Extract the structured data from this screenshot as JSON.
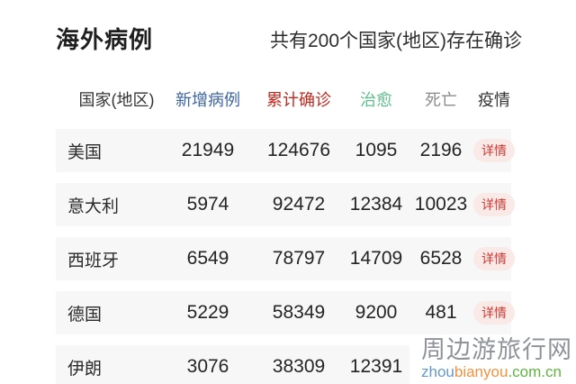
{
  "page": {
    "title": "海外病例",
    "subtitle": "共有200个国家(地区)存在确诊"
  },
  "table": {
    "headers": [
      {
        "label": "国家(地区)",
        "color": "#333333"
      },
      {
        "label": "新增病例",
        "color": "#3f64a2"
      },
      {
        "label": "累计确诊",
        "color": "#bf2a21"
      },
      {
        "label": "治愈",
        "color": "#5fbe8e"
      },
      {
        "label": "死亡",
        "color": "#8c8c8c"
      },
      {
        "label": "疫情",
        "color": "#333333"
      }
    ],
    "detail_label": "详情",
    "rows": [
      {
        "country": "美国",
        "new_cases": "21949",
        "confirmed": "124676",
        "cured": "1095",
        "deaths": "2196"
      },
      {
        "country": "意大利",
        "new_cases": "5974",
        "confirmed": "92472",
        "cured": "12384",
        "deaths": "10023"
      },
      {
        "country": "西班牙",
        "new_cases": "6549",
        "confirmed": "78797",
        "cured": "14709",
        "deaths": "6528"
      },
      {
        "country": "德国",
        "new_cases": "5229",
        "confirmed": "58349",
        "cured": "9200",
        "deaths": "481"
      },
      {
        "country": "伊朗",
        "new_cases": "3076",
        "confirmed": "38309",
        "cured": "12391",
        "deaths": ""
      }
    ]
  },
  "watermark": {
    "site_name": "周边游旅行网",
    "url_parts": [
      {
        "text": "zhou",
        "color": "#6699cc"
      },
      {
        "text": "bianyou",
        "color": "#f0923f"
      },
      {
        "text": ".com.cn",
        "color": "#5fb441"
      }
    ]
  },
  "colors": {
    "row_background": "#f7f7f8",
    "detail_button_background": "#f9e9e7",
    "detail_button_text": "#cf3a34",
    "number_text": "#242424",
    "title_text": "#1f1f1f",
    "watermark_name": "#8f9499"
  }
}
